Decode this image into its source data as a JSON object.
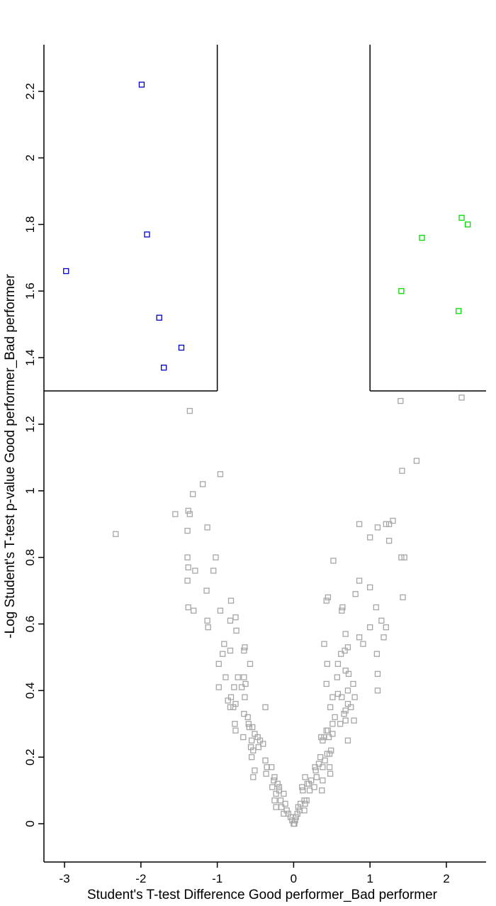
{
  "chart_data": {
    "type": "scatter",
    "title": "",
    "xlabel": "Student's T-test Difference Good performer_Bad performer",
    "ylabel": "-Log Student's T-test p-value Good performer_Bad performer",
    "xlim": [
      -3.27,
      2.52
    ],
    "ylim": [
      -0.115,
      2.34
    ],
    "x_ticks": [
      -3,
      -2,
      -1,
      0,
      1,
      2
    ],
    "y_ticks": [
      0,
      0.2,
      0.4,
      0.6,
      0.8,
      1,
      1.2,
      1.4,
      1.6,
      1.8,
      2,
      2.2
    ],
    "thresholds": {
      "x_neg": -1,
      "x_pos": 1,
      "y": 1.3
    },
    "colors": {
      "down": "#0000cc",
      "up": "#00dd00",
      "ns": "#a6a6a6",
      "axis": "#000000"
    },
    "series": [
      {
        "key": "down",
        "points": [
          [
            -1.99,
            2.22
          ],
          [
            -1.92,
            1.77
          ],
          [
            -2.98,
            1.66
          ],
          [
            -1.76,
            1.52
          ],
          [
            -1.47,
            1.43
          ],
          [
            -1.7,
            1.37
          ]
        ]
      },
      {
        "key": "up",
        "points": [
          [
            2.2,
            1.82
          ],
          [
            2.28,
            1.8
          ],
          [
            1.68,
            1.76
          ],
          [
            1.41,
            1.6
          ],
          [
            2.16,
            1.54
          ]
        ]
      },
      {
        "key": "ns",
        "points": [
          [
            -1.36,
            1.24
          ],
          [
            2.2,
            1.28
          ],
          [
            1.4,
            1.27
          ],
          [
            1.61,
            1.09
          ],
          [
            1.42,
            1.06
          ],
          [
            -0.96,
            1.05
          ],
          [
            -1.19,
            1.02
          ],
          [
            -1.32,
            0.99
          ],
          [
            -2.33,
            0.87
          ],
          [
            -1.55,
            0.93
          ],
          [
            -1.38,
            0.94
          ],
          [
            -1.36,
            0.93
          ],
          [
            -1.13,
            0.89
          ],
          [
            -1.39,
            0.88
          ],
          [
            0.86,
            0.9
          ],
          [
            1.1,
            0.89
          ],
          [
            1.25,
            0.9
          ],
          [
            1.3,
            0.91
          ],
          [
            1.21,
            0.9
          ],
          [
            1.0,
            0.86
          ],
          [
            1.25,
            0.85
          ],
          [
            -1.39,
            0.8
          ],
          [
            -1.02,
            0.8
          ],
          [
            0.52,
            0.79
          ],
          [
            1.41,
            0.8
          ],
          [
            1.45,
            0.8
          ],
          [
            -1.29,
            0.76
          ],
          [
            -1.38,
            0.77
          ],
          [
            -1.05,
            0.76
          ],
          [
            -1.39,
            0.73
          ],
          [
            0.86,
            0.73
          ],
          [
            1.0,
            0.71
          ],
          [
            -1.14,
            0.7
          ],
          [
            0.81,
            0.69
          ],
          [
            0.45,
            0.68
          ],
          [
            0.43,
            0.67
          ],
          [
            -1.38,
            0.65
          ],
          [
            -1.31,
            0.64
          ],
          [
            -0.96,
            0.64
          ],
          [
            1.43,
            0.68
          ],
          [
            0.64,
            0.65
          ],
          [
            0.63,
            0.64
          ],
          [
            -0.82,
            0.67
          ],
          [
            1.08,
            0.65
          ],
          [
            -1.13,
            0.61
          ],
          [
            -0.76,
            0.62
          ],
          [
            -0.83,
            0.61
          ],
          [
            -1.12,
            0.59
          ],
          [
            1.15,
            0.61
          ],
          [
            1.21,
            0.59
          ],
          [
            1.0,
            0.59
          ],
          [
            -0.75,
            0.58
          ],
          [
            0.68,
            0.57
          ],
          [
            0.86,
            0.56
          ],
          [
            1.18,
            0.56
          ],
          [
            0.91,
            0.54
          ],
          [
            0.4,
            0.54
          ],
          [
            -0.91,
            0.54
          ],
          [
            -0.64,
            0.53
          ],
          [
            -0.65,
            0.52
          ],
          [
            -0.93,
            0.51
          ],
          [
            -0.83,
            0.52
          ],
          [
            0.71,
            0.53
          ],
          [
            0.67,
            0.52
          ],
          [
            0.62,
            0.51
          ],
          [
            1.09,
            0.51
          ],
          [
            0.58,
            0.48
          ],
          [
            -0.98,
            0.48
          ],
          [
            -0.57,
            0.48
          ],
          [
            0.44,
            0.48
          ],
          [
            1.1,
            0.45
          ],
          [
            0.68,
            0.46
          ],
          [
            0.72,
            0.45
          ],
          [
            0.57,
            0.44
          ],
          [
            -0.89,
            0.44
          ],
          [
            -0.73,
            0.44
          ],
          [
            -0.65,
            0.44
          ],
          [
            0.43,
            0.42
          ],
          [
            -0.68,
            0.41
          ],
          [
            -0.63,
            0.42
          ],
          [
            -0.98,
            0.41
          ],
          [
            0.58,
            0.39
          ],
          [
            -0.78,
            0.41
          ],
          [
            0.71,
            0.4
          ],
          [
            0.78,
            0.42
          ],
          [
            1.1,
            0.4
          ],
          [
            -0.82,
            0.38
          ],
          [
            -0.64,
            0.38
          ],
          [
            0.51,
            0.38
          ],
          [
            0.63,
            0.38
          ],
          [
            0.8,
            0.38
          ],
          [
            -0.86,
            0.37
          ],
          [
            -0.76,
            0.36
          ],
          [
            -0.79,
            0.35
          ],
          [
            -0.83,
            0.35
          ],
          [
            0.71,
            0.36
          ],
          [
            0.75,
            0.35
          ],
          [
            0.68,
            0.34
          ],
          [
            0.66,
            0.33
          ],
          [
            0.48,
            0.35
          ],
          [
            -0.37,
            0.35
          ],
          [
            -0.65,
            0.33
          ],
          [
            -0.6,
            0.32
          ],
          [
            0.54,
            0.32
          ],
          [
            0.79,
            0.31
          ],
          [
            0.68,
            0.31
          ],
          [
            -0.77,
            0.3
          ],
          [
            -0.58,
            0.29
          ],
          [
            -0.54,
            0.29
          ],
          [
            -0.59,
            0.3
          ],
          [
            0.61,
            0.3
          ],
          [
            0.51,
            0.3
          ],
          [
            -0.76,
            0.28
          ],
          [
            -0.51,
            0.27
          ],
          [
            0.43,
            0.28
          ],
          [
            0.45,
            0.28
          ],
          [
            0.51,
            0.27
          ],
          [
            0.46,
            0.26
          ],
          [
            -0.66,
            0.26
          ],
          [
            -0.55,
            0.25
          ],
          [
            -0.47,
            0.26
          ],
          [
            -0.44,
            0.25
          ],
          [
            -0.4,
            0.24
          ],
          [
            0.36,
            0.26
          ],
          [
            0.4,
            0.26
          ],
          [
            0.71,
            0.25
          ],
          [
            0.38,
            0.25
          ],
          [
            -0.56,
            0.23
          ],
          [
            -0.53,
            0.22
          ],
          [
            -0.46,
            0.23
          ],
          [
            0.47,
            0.21
          ],
          [
            0.49,
            0.22
          ],
          [
            0.44,
            0.21
          ],
          [
            0.35,
            0.2
          ],
          [
            -0.55,
            0.2
          ],
          [
            -0.37,
            0.19
          ],
          [
            0.41,
            0.19
          ],
          [
            0.47,
            0.17
          ],
          [
            -0.51,
            0.16
          ],
          [
            -0.35,
            0.17
          ],
          [
            -0.29,
            0.17
          ],
          [
            0.33,
            0.18
          ],
          [
            0.38,
            0.17
          ],
          [
            0.28,
            0.17
          ],
          [
            0.29,
            0.16
          ],
          [
            0.48,
            0.15
          ],
          [
            -0.53,
            0.14
          ],
          [
            -0.36,
            0.15
          ],
          [
            -0.26,
            0.13
          ],
          [
            -0.25,
            0.14
          ],
          [
            -0.21,
            0.12
          ],
          [
            0.15,
            0.14
          ],
          [
            0.23,
            0.13
          ],
          [
            0.38,
            0.13
          ],
          [
            0.3,
            0.14
          ],
          [
            -0.28,
            0.11
          ],
          [
            -0.19,
            0.11
          ],
          [
            0.11,
            0.11
          ],
          [
            0.18,
            0.12
          ],
          [
            0.2,
            0.12
          ],
          [
            0.27,
            0.11
          ],
          [
            -0.19,
            0.1
          ],
          [
            -0.23,
            0.09
          ],
          [
            -0.13,
            0.09
          ],
          [
            0.12,
            0.1
          ],
          [
            0.21,
            0.1
          ],
          [
            0.37,
            0.1
          ],
          [
            -0.25,
            0.07
          ],
          [
            -0.17,
            0.07
          ],
          [
            0.14,
            0.07
          ],
          [
            0.17,
            0.07
          ],
          [
            -0.11,
            0.06
          ],
          [
            0.09,
            0.06
          ],
          [
            0.15,
            0.06
          ],
          [
            -0.16,
            0.05
          ],
          [
            -0.23,
            0.05
          ],
          [
            0.06,
            0.05
          ],
          [
            -0.09,
            0.04
          ],
          [
            0.08,
            0.04
          ],
          [
            0.14,
            0.04
          ],
          [
            -0.13,
            0.03
          ],
          [
            -0.07,
            0.03
          ],
          [
            0.05,
            0.03
          ],
          [
            -0.04,
            0.02
          ],
          [
            0.03,
            0.02
          ],
          [
            -0.02,
            0.01
          ],
          [
            0.02,
            0.01
          ],
          [
            0.0,
            0.0
          ],
          [
            0.01,
            0.0
          ]
        ]
      }
    ]
  }
}
